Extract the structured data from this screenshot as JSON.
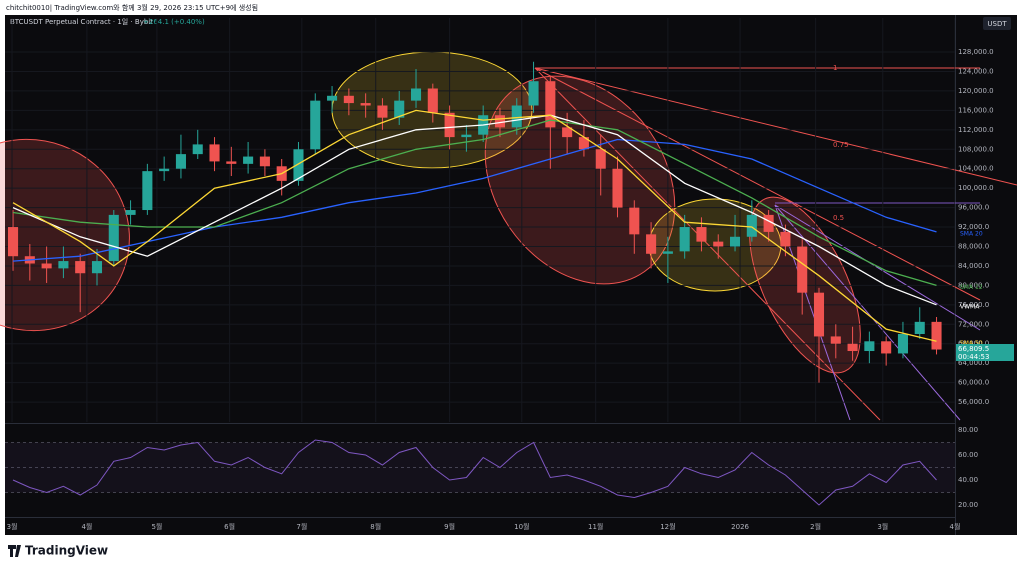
{
  "header": {
    "caption": "chitchit0010| TradingView.com와 함께 3월 29, 2026 23:15 UTC+9에 생성됨",
    "footer": "TradingView"
  },
  "chart_data": {
    "type": "candlestick",
    "title": "BTCUSDT Perpetual Contract · 1일 · Bybit",
    "change": "+264.1 (+0.40%)",
    "currency": "USDT",
    "last_price_label": "66,809.5",
    "countdown": "00:44:53",
    "annotations": [
      "1",
      "0.75",
      "0.5"
    ],
    "colors": {
      "up": "#26a69a",
      "down": "#ef5350"
    },
    "xlim": [
      -0.3,
      56.1
    ],
    "xticks": [
      {
        "value": -0.06,
        "label": "3월"
      },
      {
        "value": 4.4,
        "label": "4월"
      },
      {
        "value": 8.57,
        "label": "5월"
      },
      {
        "value": 12.9,
        "label": "6월"
      },
      {
        "value": 17.2,
        "label": "7월"
      },
      {
        "value": 21.6,
        "label": "8월"
      },
      {
        "value": 26.0,
        "label": "9월"
      },
      {
        "value": 30.3,
        "label": "10월"
      },
      {
        "value": 34.7,
        "label": "11월"
      },
      {
        "value": 39.0,
        "label": "12월"
      },
      {
        "value": 43.3,
        "label": "2026"
      },
      {
        "value": 47.8,
        "label": "2월"
      },
      {
        "value": 51.8,
        "label": "3월"
      },
      {
        "value": 56.1,
        "label": "4월"
      }
    ],
    "ylim": [
      51900,
      135000
    ],
    "yticks": [
      {
        "value": 56000,
        "label": "56,000.0"
      },
      {
        "value": 60000,
        "label": "60,000.0"
      },
      {
        "value": 64000,
        "label": "64,000.0"
      },
      {
        "value": 68000,
        "label": "68,000.0"
      },
      {
        "value": 72000,
        "label": "72,000.0"
      },
      {
        "value": 76000,
        "label": "76,000.0"
      },
      {
        "value": 80000,
        "label": "80,000.0"
      },
      {
        "value": 84000,
        "label": "84,000.0"
      },
      {
        "value": 88000,
        "label": "88,000.0"
      },
      {
        "value": 92000,
        "label": "92,000.0"
      },
      {
        "value": 96000,
        "label": "96,000.0"
      },
      {
        "value": 100000,
        "label": "100,000.0"
      },
      {
        "value": 104000,
        "label": "104,000.0"
      },
      {
        "value": 108000,
        "label": "108,000.0"
      },
      {
        "value": 112000,
        "label": "112,000.0"
      },
      {
        "value": 116000,
        "label": "116,000.0"
      },
      {
        "value": 120000,
        "label": "120,000.0"
      },
      {
        "value": 124000,
        "label": "124,000.0"
      },
      {
        "value": 128000,
        "label": "128,000.0"
      }
    ],
    "open": [
      92000,
      86000,
      84500,
      83500,
      85000,
      82500,
      85000,
      94500,
      95500,
      103500,
      104000,
      107000,
      109000,
      105500,
      105000,
      106500,
      104500,
      101500,
      108000,
      118000,
      119000,
      117500,
      117000,
      114500,
      118000,
      120500,
      115500,
      110500,
      111000,
      115000,
      112500,
      117000,
      122000,
      112500,
      110500,
      108000,
      104000,
      96000,
      90500,
      86500,
      87000,
      92000,
      89000,
      88000,
      90000,
      94500,
      91000,
      88000,
      78500,
      69500,
      68000,
      66500,
      68500,
      66000,
      70000,
      72500
    ],
    "high": [
      95500,
      88500,
      88000,
      88000,
      86500,
      87500,
      95500,
      97500,
      105000,
      106500,
      111000,
      112000,
      110500,
      108500,
      109500,
      108000,
      106000,
      109500,
      119500,
      121000,
      120500,
      119500,
      118500,
      120000,
      124500,
      121500,
      117000,
      113000,
      117000,
      116500,
      118500,
      126000,
      123000,
      115500,
      114000,
      111000,
      106500,
      97500,
      93000,
      90000,
      94500,
      94000,
      90500,
      94500,
      97500,
      95500,
      92500,
      89500,
      79500,
      72000,
      71500,
      70500,
      69500,
      72500,
      75500,
      73500
    ],
    "low": [
      83000,
      81000,
      80500,
      81500,
      74500,
      80000,
      84000,
      92500,
      94500,
      101500,
      102000,
      106000,
      103500,
      102500,
      103000,
      102500,
      98500,
      100500,
      107000,
      115500,
      115000,
      114500,
      112000,
      113000,
      116500,
      113500,
      108000,
      107500,
      109500,
      110500,
      111000,
      115500,
      104000,
      107000,
      106500,
      98500,
      94000,
      86500,
      83500,
      80500,
      85500,
      87000,
      85500,
      87000,
      89000,
      89000,
      86000,
      74000,
      60000,
      65000,
      64500,
      64000,
      63500,
      65000,
      69000,
      65800
    ],
    "close": [
      86000,
      84500,
      83500,
      85000,
      82500,
      85000,
      94500,
      95500,
      103500,
      104000,
      107000,
      109000,
      105500,
      105000,
      106500,
      104500,
      101500,
      108000,
      118000,
      119000,
      117500,
      117000,
      114500,
      118000,
      120500,
      115500,
      110500,
      111000,
      115000,
      112500,
      117000,
      122000,
      112500,
      110500,
      108000,
      104000,
      96000,
      90500,
      86500,
      87000,
      92000,
      89000,
      88000,
      90000,
      94500,
      91000,
      88000,
      78500,
      69500,
      68000,
      66500,
      68500,
      66000,
      70000,
      72500,
      66809
    ],
    "series": [
      {
        "name": "SMA 20",
        "color": "#2962ff",
        "x": [
          0,
          4,
          8,
          12,
          16,
          20,
          24,
          28,
          32,
          36,
          40,
          44,
          48,
          52,
          55
        ],
        "values": [
          85000,
          86000,
          89000,
          92000,
          94000,
          97000,
          99000,
          102000,
          106000,
          110000,
          109000,
          106000,
          100000,
          94000,
          91000
        ]
      },
      {
        "name": "SMA 12",
        "color": "#4caf50",
        "x": [
          0,
          4,
          8,
          12,
          16,
          20,
          24,
          28,
          32,
          36,
          40,
          44,
          48,
          52,
          55
        ],
        "values": [
          95000,
          93000,
          92000,
          92000,
          97000,
          104000,
          108000,
          110000,
          114000,
          112000,
          105000,
          98000,
          90000,
          83000,
          80000
        ]
      },
      {
        "name": "VWMA",
        "color": "#ffffff",
        "x": [
          0,
          4,
          8,
          12,
          16,
          20,
          24,
          28,
          32,
          36,
          40,
          44,
          48,
          52,
          55
        ],
        "values": [
          96000,
          90000,
          86000,
          93000,
          100000,
          108000,
          112000,
          113000,
          115000,
          111000,
          101000,
          95000,
          88000,
          80000,
          76000
        ]
      },
      {
        "name": "SMA 50",
        "color": "#fdd835",
        "x": [
          0,
          4,
          6,
          8,
          12,
          16,
          20,
          24,
          28,
          32,
          36,
          40,
          44,
          48,
          52,
          55
        ],
        "values": [
          97000,
          89000,
          84000,
          89000,
          100000,
          103000,
          111000,
          116000,
          114000,
          115000,
          106000,
          93000,
          92000,
          82000,
          71000,
          68500
        ]
      }
    ],
    "rsi": {
      "color": "#7e57c2",
      "ylim": [
        12,
        84
      ],
      "yticks": [
        {
          "value": 20,
          "label": "20.00"
        },
        {
          "value": 40,
          "label": "40.00"
        },
        {
          "value": 60,
          "label": "60.00"
        },
        {
          "value": 80,
          "label": "80.00"
        }
      ],
      "bands": [
        30,
        50,
        70
      ],
      "values": [
        40,
        34,
        30,
        35,
        28,
        36,
        55,
        58,
        66,
        64,
        68,
        70,
        55,
        52,
        58,
        50,
        45,
        62,
        72,
        70,
        62,
        60,
        52,
        62,
        66,
        50,
        40,
        42,
        58,
        50,
        62,
        70,
        42,
        44,
        40,
        35,
        28,
        26,
        30,
        35,
        50,
        45,
        42,
        48,
        62,
        52,
        44,
        32,
        20,
        32,
        35,
        45,
        38,
        52,
        55,
        40
      ]
    }
  }
}
